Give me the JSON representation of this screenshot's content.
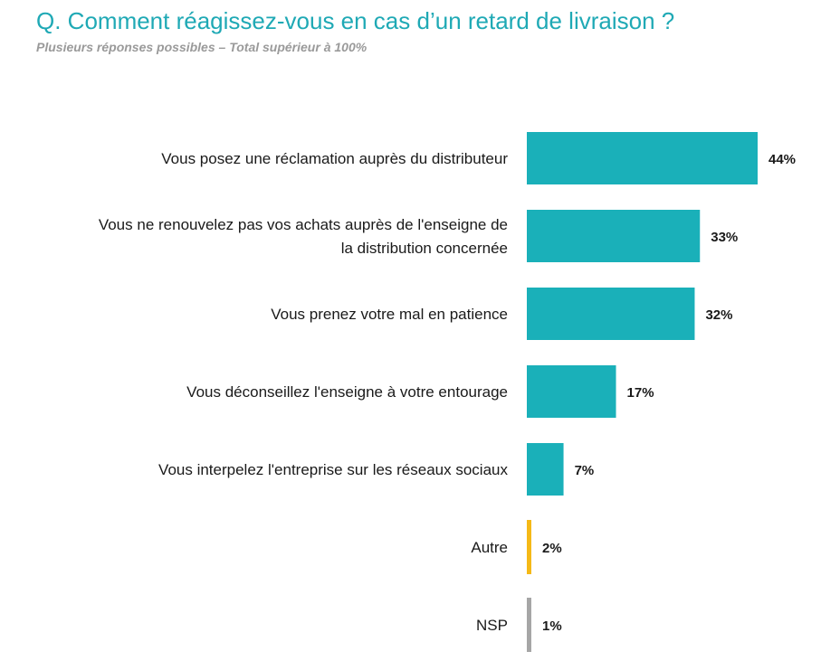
{
  "title": "Q. Comment réagissez-vous en cas d’un retard de livraison ?",
  "subtitle": "Plusieurs réponses possibles – Total supérieur à 100%",
  "chart_data": {
    "type": "bar",
    "orientation": "horizontal",
    "categories": [
      [
        "Vous posez une réclamation auprès du distributeur"
      ],
      [
        "Vous ne renouvelez pas vos achats auprès de l'enseigne de",
        "la distribution concernée"
      ],
      [
        "Vous prenez votre mal en patience"
      ],
      [
        "Vous déconseillez l'enseigne à votre entourage"
      ],
      [
        "Vous interpelez l'entreprise sur les réseaux sociaux"
      ],
      [
        "Autre"
      ],
      [
        "NSP"
      ]
    ],
    "values": [
      44,
      33,
      32,
      17,
      7,
      2,
      1
    ],
    "value_labels": [
      "44%",
      "33%",
      "32%",
      "17%",
      "7%",
      "2%",
      "1%"
    ],
    "colors": [
      "#1ab0b9",
      "#1ab0b9",
      "#1ab0b9",
      "#1ab0b9",
      "#1ab0b9",
      "#f5b917",
      "#a6a6a6"
    ],
    "grid": false,
    "legend": "none"
  }
}
